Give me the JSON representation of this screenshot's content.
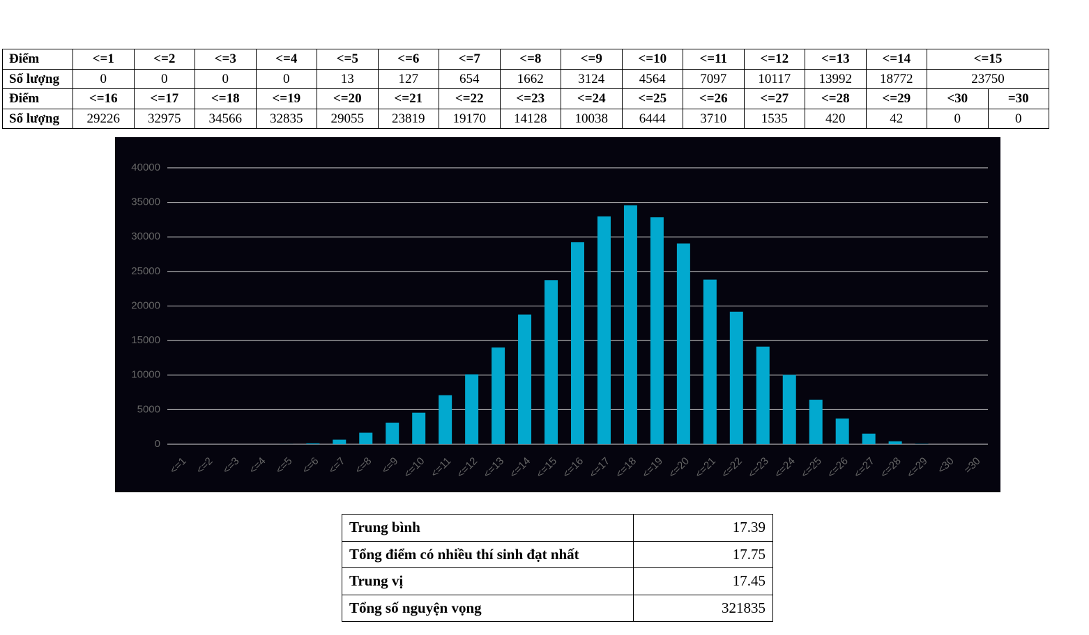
{
  "score_table": {
    "rows": [
      [
        "Điểm",
        "<=1",
        "<=2",
        "<=3",
        "<=4",
        "<=5",
        "<=6",
        "<=7",
        "<=8",
        "<=9",
        "<=10",
        "<=11",
        "<=12",
        "<=13",
        "<=14",
        "<=15"
      ],
      [
        "Số lượng",
        0,
        0,
        0,
        0,
        13,
        127,
        654,
        1662,
        3124,
        4564,
        7097,
        10117,
        13992,
        18772,
        23750
      ],
      [
        "Điểm",
        "<=16",
        "<=17",
        "<=18",
        "<=19",
        "<=20",
        "<=21",
        "<=22",
        "<=23",
        "<=24",
        "<=25",
        "<=26",
        "<=27",
        "<=28",
        "<=29",
        "<30",
        "=30"
      ],
      [
        "Số lượng",
        29226,
        32975,
        34566,
        32835,
        29055,
        23819,
        19170,
        14128,
        10038,
        6444,
        3710,
        1535,
        420,
        42,
        0,
        0
      ]
    ]
  },
  "chart_data": {
    "type": "bar",
    "categories": [
      "<=1",
      "<=2",
      "<=3",
      "<=4",
      "<=5",
      "<=6",
      "<=7",
      "<=8",
      "<=9",
      "<=10",
      "<=11",
      "<=12",
      "<=13",
      "<=14",
      "<=15",
      "<=16",
      "<=17",
      "<=18",
      "<=19",
      "<=20",
      "<=21",
      "<=22",
      "<=23",
      "<=24",
      "<=25",
      "<=26",
      "<=27",
      "<=28",
      "<=29",
      "<30",
      "=30"
    ],
    "values": [
      0,
      0,
      0,
      0,
      13,
      127,
      654,
      1662,
      3124,
      4564,
      7097,
      10117,
      13992,
      18772,
      23750,
      29226,
      32975,
      34566,
      32835,
      29055,
      23819,
      19170,
      14128,
      10038,
      6444,
      3710,
      1535,
      420,
      42,
      0,
      0
    ],
    "color": "#02a9cf",
    "ylim": [
      0,
      40000
    ],
    "yticks": [
      0,
      5000,
      10000,
      15000,
      20000,
      25000,
      30000,
      35000,
      40000
    ],
    "grid": true
  },
  "stats_table": {
    "rows": [
      [
        "Trung bình",
        17.39
      ],
      [
        "Tổng điểm có nhiều thí sinh đạt nhất",
        17.75
      ],
      [
        "Trung vị",
        17.45
      ],
      [
        "Tổng số nguyện vọng",
        321835
      ]
    ]
  }
}
